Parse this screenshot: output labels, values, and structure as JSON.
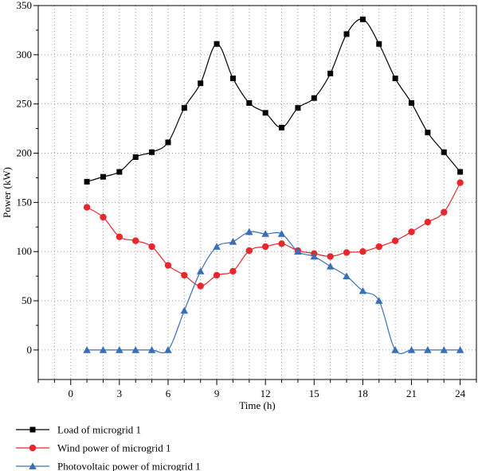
{
  "chart_data": {
    "type": "line",
    "xlabel": "Time (h)",
    "ylabel": "Power (kW)",
    "xlim": [
      -2,
      25
    ],
    "ylim": [
      -30,
      350
    ],
    "xticks": [
      0,
      3,
      6,
      9,
      12,
      15,
      18,
      21,
      24
    ],
    "yticks": [
      0,
      50,
      100,
      150,
      200,
      250,
      300,
      350
    ],
    "grid": true,
    "legend_position": "below",
    "x": [
      1,
      2,
      3,
      4,
      5,
      6,
      7,
      8,
      9,
      10,
      11,
      12,
      13,
      14,
      15,
      16,
      17,
      18,
      19,
      20,
      21,
      22,
      23,
      24
    ],
    "series": [
      {
        "name": "Load of microgrid 1",
        "color": "#000000",
        "marker": "square",
        "values": [
          171,
          176,
          181,
          196,
          201,
          211,
          246,
          271,
          311,
          276,
          251,
          241,
          226,
          246,
          256,
          281,
          321,
          336,
          311,
          276,
          251,
          221,
          201,
          181
        ]
      },
      {
        "name": "Wind power of microgrid 1",
        "color": "#e8262b",
        "marker": "circle",
        "values": [
          145,
          135,
          115,
          111,
          105,
          86,
          76,
          65,
          76,
          80,
          101,
          105,
          108,
          101,
          98,
          95,
          99,
          100,
          105,
          111,
          120,
          130,
          140,
          170
        ]
      },
      {
        "name": "Photovoltaic power of microgrid 1",
        "color": "#3a6fb7",
        "marker": "triangle",
        "values": [
          0,
          0,
          0,
          0,
          0,
          0,
          40,
          80,
          105,
          110,
          120,
          118,
          118,
          100,
          95,
          85,
          75,
          60,
          50,
          0,
          0,
          0,
          0,
          0
        ]
      }
    ]
  }
}
